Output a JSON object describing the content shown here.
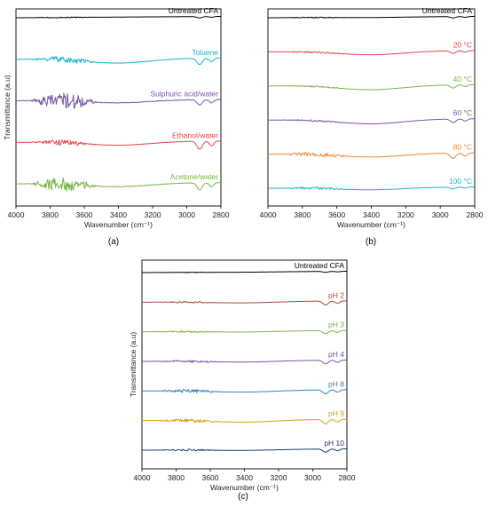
{
  "chart_data": [
    {
      "type": "line",
      "panel_label": "(a)",
      "xlabel": "Wavenumber (cm⁻¹)",
      "ylabel": "Transmittance (a.u)",
      "xlim": [
        4000,
        2800
      ],
      "xticks": [
        "4000",
        "3800",
        "3600",
        "3400",
        "3200",
        "3000",
        "2800"
      ],
      "grid": false,
      "series": [
        {
          "name": "Untreated CFA",
          "color": "#000000",
          "noise": 0.6,
          "bump": 0.0,
          "dip": 1.5
        },
        {
          "name": "Toluene",
          "color": "#17b2c9",
          "noise": 3.5,
          "bump": 5.0,
          "dip": 7.0
        },
        {
          "name": "Sulphuric acid/water",
          "color": "#7b56a2",
          "noise": 9.0,
          "bump": 3.0,
          "dip": 6.0
        },
        {
          "name": "Ethanol/water",
          "color": "#df4a4a",
          "noise": 3.0,
          "bump": 4.0,
          "dip": 9.0
        },
        {
          "name": "Acetone/water",
          "color": "#7ab648",
          "noise": 8.0,
          "bump": 4.0,
          "dip": 8.0
        }
      ]
    },
    {
      "type": "line",
      "panel_label": "(b)",
      "xlabel": "Wavenumber (cm⁻¹)",
      "ylabel": "",
      "xlim": [
        4000,
        2800
      ],
      "xticks": [
        "4000",
        "3800",
        "3600",
        "3400",
        "3200",
        "3000",
        "2800"
      ],
      "grid": false,
      "series": [
        {
          "name": "Untreated CFA",
          "color": "#000000",
          "noise": 0.6,
          "bump": 0.5,
          "dip": 1.5
        },
        {
          "name": "20 °C",
          "color": "#df4a4a",
          "noise": 1.0,
          "bump": 4.0,
          "dip": 3.0
        },
        {
          "name": "40 °C",
          "color": "#7ab648",
          "noise": 0.8,
          "bump": 5.0,
          "dip": 3.5
        },
        {
          "name": "60 °C",
          "color": "#7b56a2",
          "noise": 1.0,
          "bump": 5.0,
          "dip": 4.0
        },
        {
          "name": "80 °C",
          "color": "#f08a38",
          "noise": 2.5,
          "bump": 4.0,
          "dip": 6.0
        },
        {
          "name": "100 °C",
          "color": "#17b2c9",
          "noise": 1.5,
          "bump": 2.5,
          "dip": 2.0
        }
      ]
    },
    {
      "type": "line",
      "panel_label": "(c)",
      "xlabel": "Wavenumber (cm⁻¹)",
      "ylabel": "Transmittance (a.u)",
      "xlim": [
        4000,
        2800
      ],
      "xticks": [
        "4000",
        "3800",
        "3600",
        "3400",
        "3200",
        "3000",
        "2800"
      ],
      "grid": false,
      "series": [
        {
          "name": "Untreated CFA",
          "color": "#000000",
          "noise": 0.4,
          "bump": 0.3,
          "dip": 1.0
        },
        {
          "name": "pH 2",
          "color": "#b5473a",
          "noise": 1.0,
          "bump": 1.5,
          "dip": 4.5
        },
        {
          "name": "pH 3",
          "color": "#7ab648",
          "noise": 1.0,
          "bump": 1.0,
          "dip": 3.5
        },
        {
          "name": "pH 4",
          "color": "#7b56a2",
          "noise": 1.2,
          "bump": 1.5,
          "dip": 4.0
        },
        {
          "name": "pH 8",
          "color": "#2e86c1",
          "noise": 2.0,
          "bump": 2.0,
          "dip": 4.5
        },
        {
          "name": "pH 9",
          "color": "#d4a017",
          "noise": 2.0,
          "bump": 2.5,
          "dip": 5.0
        },
        {
          "name": "pH 10",
          "color": "#1f3b73",
          "noise": 1.0,
          "bump": 1.0,
          "dip": 3.5
        }
      ]
    }
  ]
}
